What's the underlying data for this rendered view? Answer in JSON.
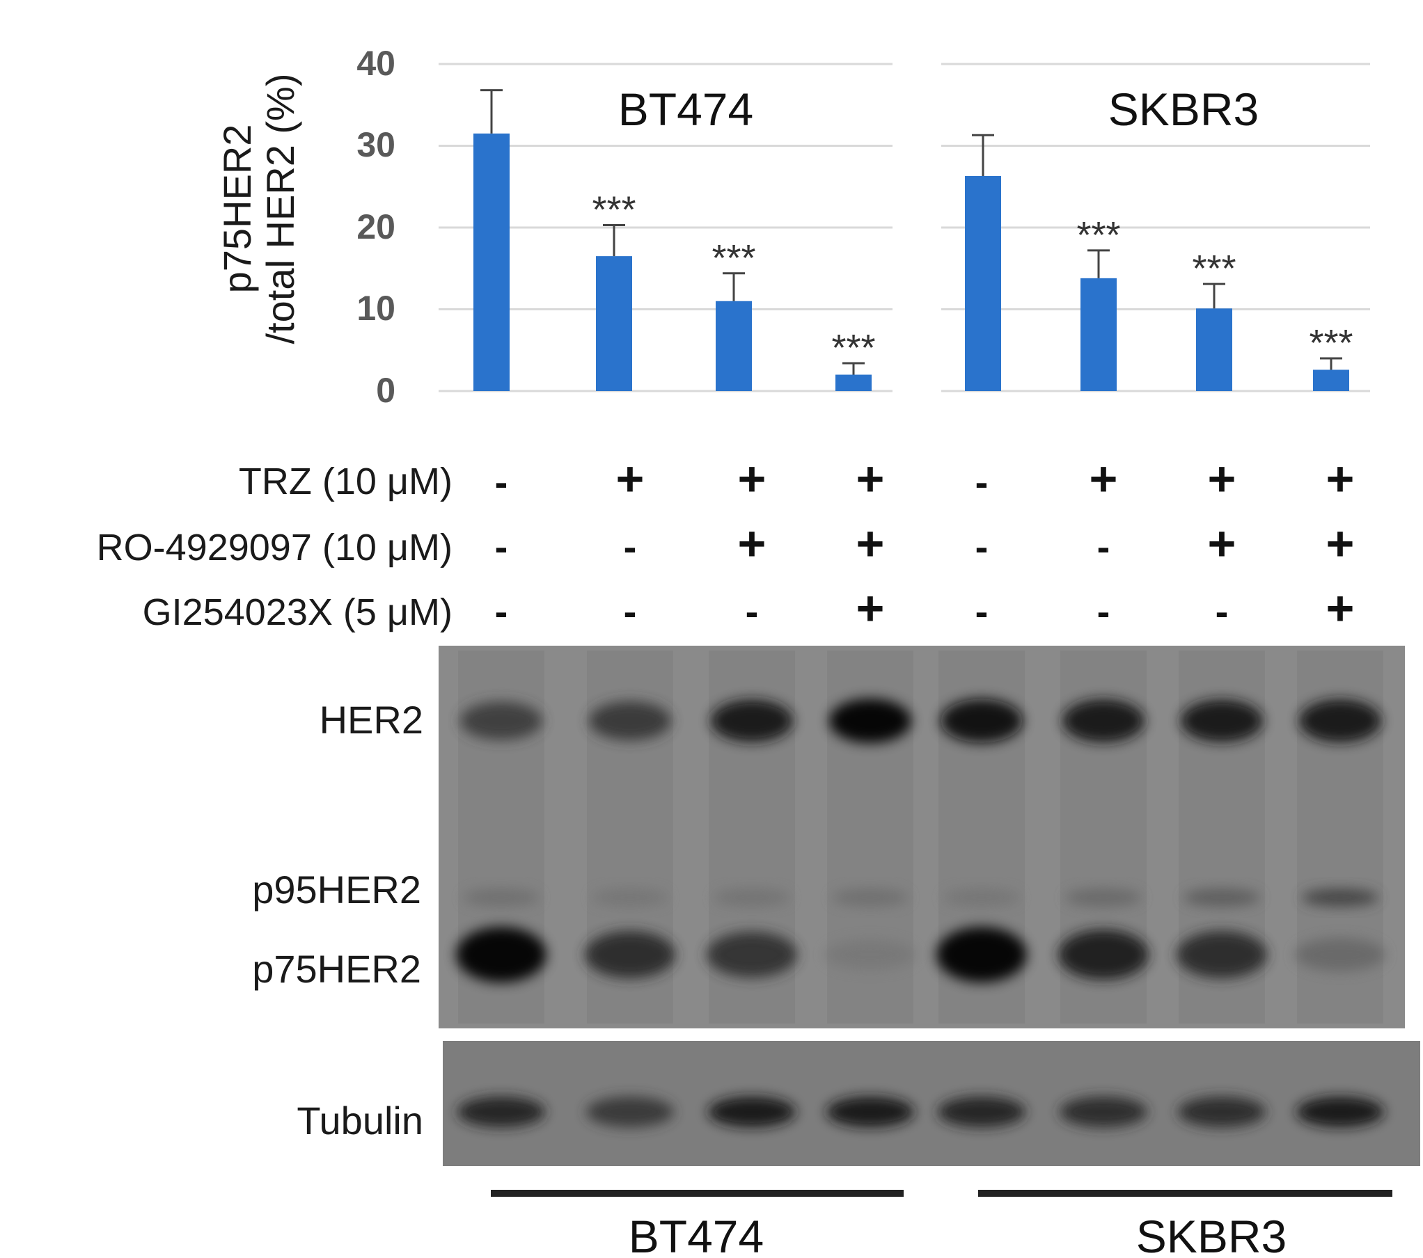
{
  "chart_data": {
    "type": "bar",
    "ylabel_line1": "p75HER2",
    "ylabel_line2": "/total HER2 (%)",
    "ylim": [
      0,
      40
    ],
    "yticks": [
      "0",
      "10",
      "20",
      "30",
      "40"
    ],
    "grid": true,
    "bar_color": "#2a73cc",
    "panels": [
      {
        "title": "BT474",
        "values": [
          31.5,
          16.5,
          11.0,
          2.0
        ],
        "errors": [
          5.3,
          3.8,
          3.4,
          1.4
        ],
        "significance": [
          "",
          "***",
          "***",
          "***"
        ]
      },
      {
        "title": "SKBR3",
        "values": [
          26.3,
          13.8,
          10.1,
          2.6
        ],
        "errors": [
          5.0,
          3.4,
          3.0,
          1.4
        ],
        "significance": [
          "",
          "***",
          "***",
          "***"
        ]
      }
    ]
  },
  "treatments": [
    {
      "label": "TRZ (10 μM)",
      "signs": [
        "-",
        "+",
        "+",
        "+",
        "-",
        "+",
        "+",
        "+"
      ]
    },
    {
      "label": "RO-4929097 (10 μM)",
      "signs": [
        "-",
        "-",
        "+",
        "+",
        "-",
        "-",
        "+",
        "+"
      ]
    },
    {
      "label": "GI254023X (5 μM)",
      "signs": [
        "-",
        "-",
        "-",
        "+",
        "-",
        "-",
        "-",
        "+"
      ]
    }
  ],
  "blot": {
    "band_labels": [
      "HER2",
      "p95HER2",
      "p75HER2"
    ],
    "loading_label": "Tubulin",
    "her2_intensity": [
      0.55,
      0.6,
      0.85,
      1.0,
      0.95,
      0.9,
      0.85,
      0.9
    ],
    "p95_intensity": [
      0.15,
      0.1,
      0.12,
      0.15,
      0.1,
      0.2,
      0.3,
      0.5
    ],
    "p75_intensity": [
      1.0,
      0.7,
      0.65,
      0.08,
      1.0,
      0.8,
      0.7,
      0.2
    ],
    "tubulin_intensity": [
      0.75,
      0.6,
      0.85,
      0.85,
      0.75,
      0.7,
      0.7,
      0.85
    ]
  },
  "cell_lines": [
    "BT474",
    "SKBR3"
  ]
}
